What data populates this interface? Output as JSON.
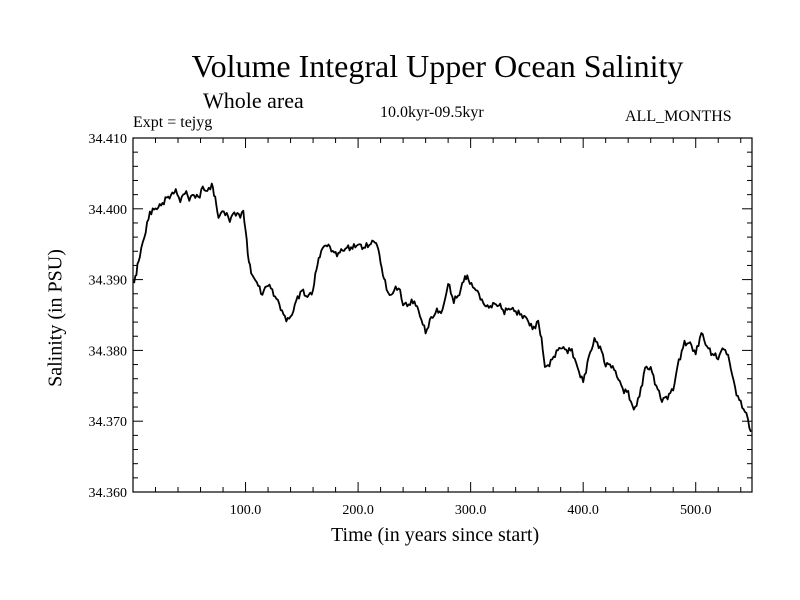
{
  "chart_data": {
    "type": "line",
    "title": "Volume Integral Upper Ocean Salinity",
    "subtitle": "Whole area",
    "experiment": "Expt = tejyg",
    "period": "10.0kyr-09.5kyr",
    "months": "ALL_MONTHS",
    "xlabel": "Time (in years since start)",
    "ylabel": "Salinity (in PSU)",
    "xlim": [
      0,
      550
    ],
    "ylim": [
      34.36,
      34.41
    ],
    "xticks": [
      100,
      200,
      300,
      400,
      500
    ],
    "xtick_labels": [
      "100.0",
      "200.0",
      "300.0",
      "400.0",
      "500.0"
    ],
    "yticks": [
      34.36,
      34.37,
      34.38,
      34.39,
      34.4,
      34.41
    ],
    "ytick_labels": [
      "34.360",
      "34.370",
      "34.380",
      "34.390",
      "34.400",
      "34.410"
    ],
    "series": [
      {
        "name": "Salinity",
        "color": "#000000",
        "x": [
          1,
          3,
          6,
          10,
          15,
          20,
          25,
          30,
          35,
          38,
          42,
          46,
          50,
          54,
          58,
          62,
          66,
          70,
          73,
          76,
          78,
          82,
          86,
          90,
          94,
          98,
          100,
          103,
          106,
          110,
          115,
          120,
          125,
          130,
          135,
          140,
          145,
          150,
          155,
          160,
          163,
          166,
          170,
          175,
          180,
          185,
          190,
          195,
          200,
          205,
          210,
          215,
          218,
          221,
          224,
          228,
          232,
          236,
          240,
          245,
          250,
          255,
          260,
          265,
          270,
          275,
          280,
          285,
          290,
          295,
          298,
          302,
          306,
          310,
          315,
          320,
          325,
          330,
          335,
          340,
          345,
          350,
          355,
          360,
          363,
          366,
          370,
          375,
          380,
          385,
          390,
          395,
          400,
          405,
          410,
          415,
          420,
          425,
          430,
          435,
          440,
          445,
          450,
          455,
          460,
          465,
          470,
          475,
          480,
          485,
          490,
          495,
          500,
          505,
          510,
          515,
          520,
          525,
          530,
          535,
          540,
          545,
          549
        ],
        "y": [
          34.3895,
          34.391,
          34.3935,
          34.396,
          34.3995,
          34.4,
          34.4005,
          34.4015,
          34.402,
          34.4025,
          34.401,
          34.4025,
          34.4015,
          34.402,
          34.4015,
          34.403,
          34.4025,
          34.4035,
          34.4015,
          34.3985,
          34.3995,
          34.3995,
          34.3985,
          34.3995,
          34.399,
          34.3995,
          34.397,
          34.3925,
          34.3905,
          34.3895,
          34.388,
          34.3895,
          34.388,
          34.3865,
          34.3845,
          34.3845,
          34.387,
          34.3885,
          34.3875,
          34.3885,
          34.3915,
          34.3935,
          34.395,
          34.3945,
          34.3935,
          34.394,
          34.3945,
          34.3945,
          34.395,
          34.3945,
          34.395,
          34.3955,
          34.3945,
          34.3915,
          34.3895,
          34.3875,
          34.3885,
          34.389,
          34.3865,
          34.3865,
          34.387,
          34.385,
          34.3825,
          34.3845,
          34.3855,
          34.3855,
          34.3895,
          34.387,
          34.388,
          34.3905,
          34.39,
          34.389,
          34.3885,
          34.387,
          34.386,
          34.3865,
          34.3865,
          34.3855,
          34.386,
          34.3855,
          34.385,
          34.3845,
          34.383,
          34.384,
          34.3815,
          34.3775,
          34.378,
          34.3795,
          34.3805,
          34.38,
          34.38,
          34.3775,
          34.3755,
          34.379,
          34.3815,
          34.3805,
          34.378,
          34.378,
          34.3765,
          34.3745,
          34.374,
          34.3715,
          34.3735,
          34.3775,
          34.3775,
          34.375,
          34.373,
          34.3735,
          34.3745,
          34.3785,
          34.381,
          34.381,
          34.3795,
          34.3825,
          34.3805,
          34.3795,
          34.379,
          34.3805,
          34.3785,
          34.3745,
          34.3725,
          34.371,
          34.3685
        ]
      }
    ]
  }
}
